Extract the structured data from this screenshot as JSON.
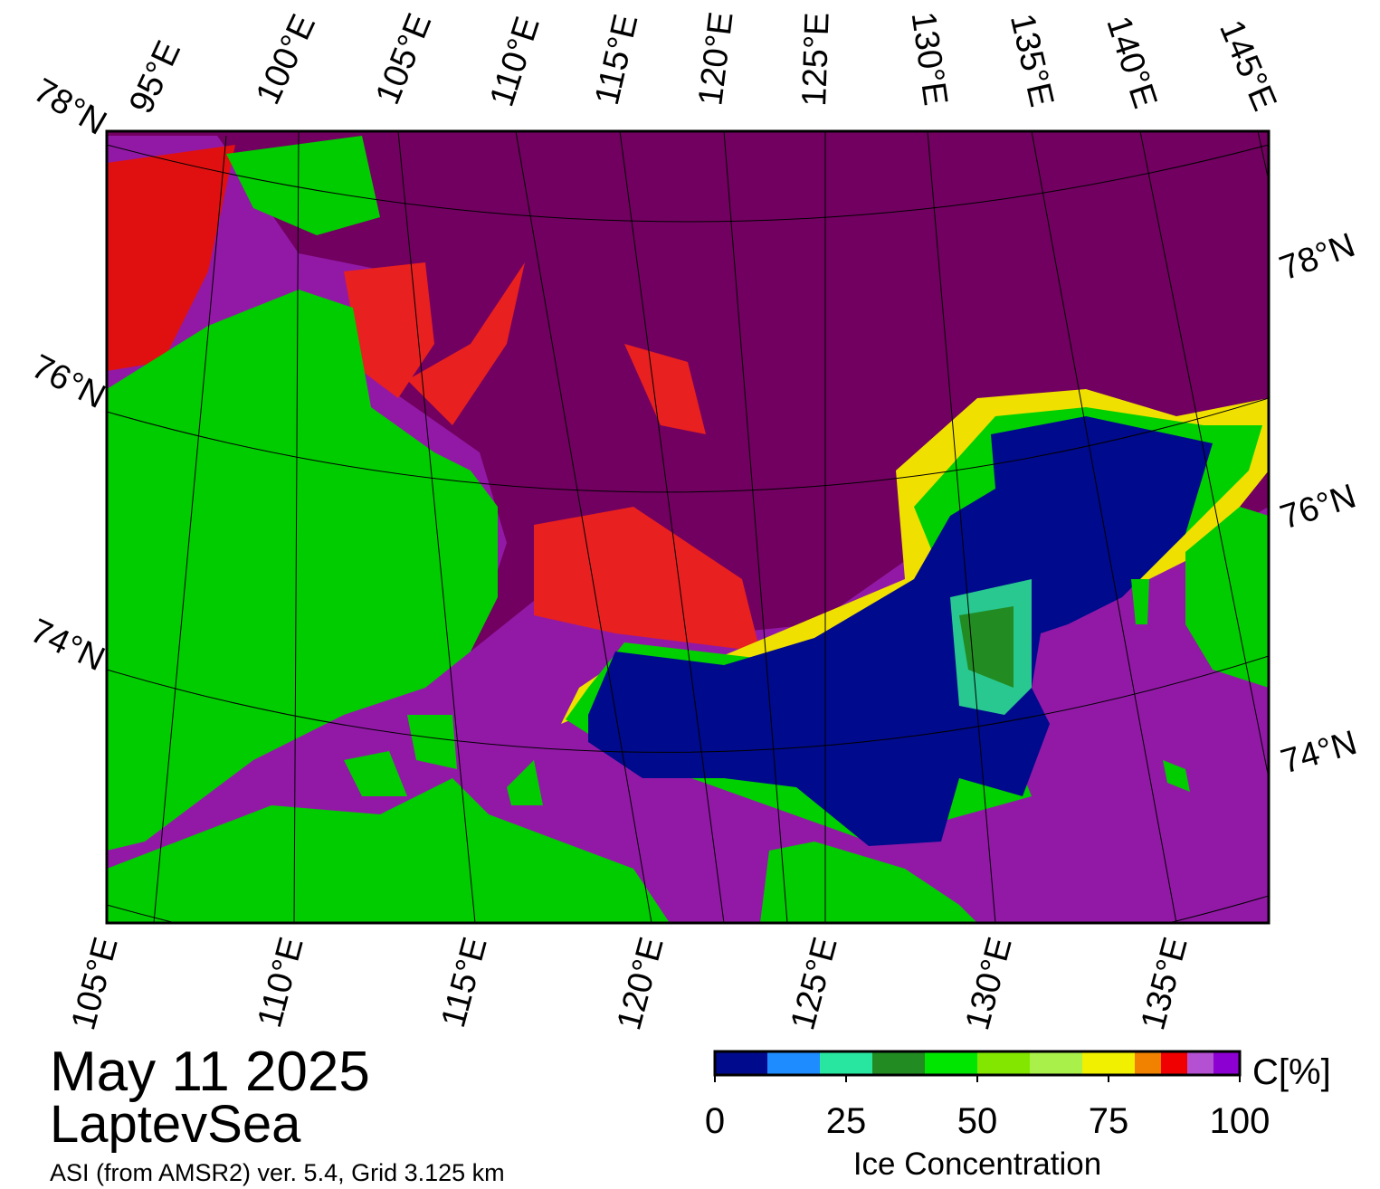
{
  "title": "May 11 2025",
  "region": "LaptevSea",
  "source": "ASI (from AMSR2) ver. 5.4,  Grid 3.125 km",
  "map": {
    "top_lon_labels": [
      "95°E",
      "100°E",
      "105°E",
      "110°E",
      "115°E",
      "120°E",
      "125°E",
      "130°E",
      "135°E",
      "140°E",
      "145°E"
    ],
    "bottom_lon_labels": [
      "105°E",
      "110°E",
      "115°E",
      "120°E",
      "125°E",
      "130°E",
      "135°E"
    ],
    "left_lat_labels": [
      "78°N",
      "76°N",
      "74°N"
    ],
    "right_lat_labels": [
      "78°N",
      "76°N",
      "74°N"
    ]
  },
  "colorbar": {
    "label": "Ice Concentration",
    "unit": "C[%]",
    "lim": [
      0,
      100
    ],
    "ticks": [
      0,
      25,
      50,
      75,
      100
    ],
    "bounds": [
      0,
      10,
      20,
      30,
      40,
      50,
      60,
      70,
      80,
      85,
      90,
      95,
      100
    ],
    "colors": [
      "#000a8c",
      "#1e8cff",
      "#28e6a0",
      "#228b22",
      "#00e600",
      "#82e600",
      "#aaf04b",
      "#f0f000",
      "#f08200",
      "#f00000",
      "#b450d2",
      "#8c00d2"
    ]
  }
}
